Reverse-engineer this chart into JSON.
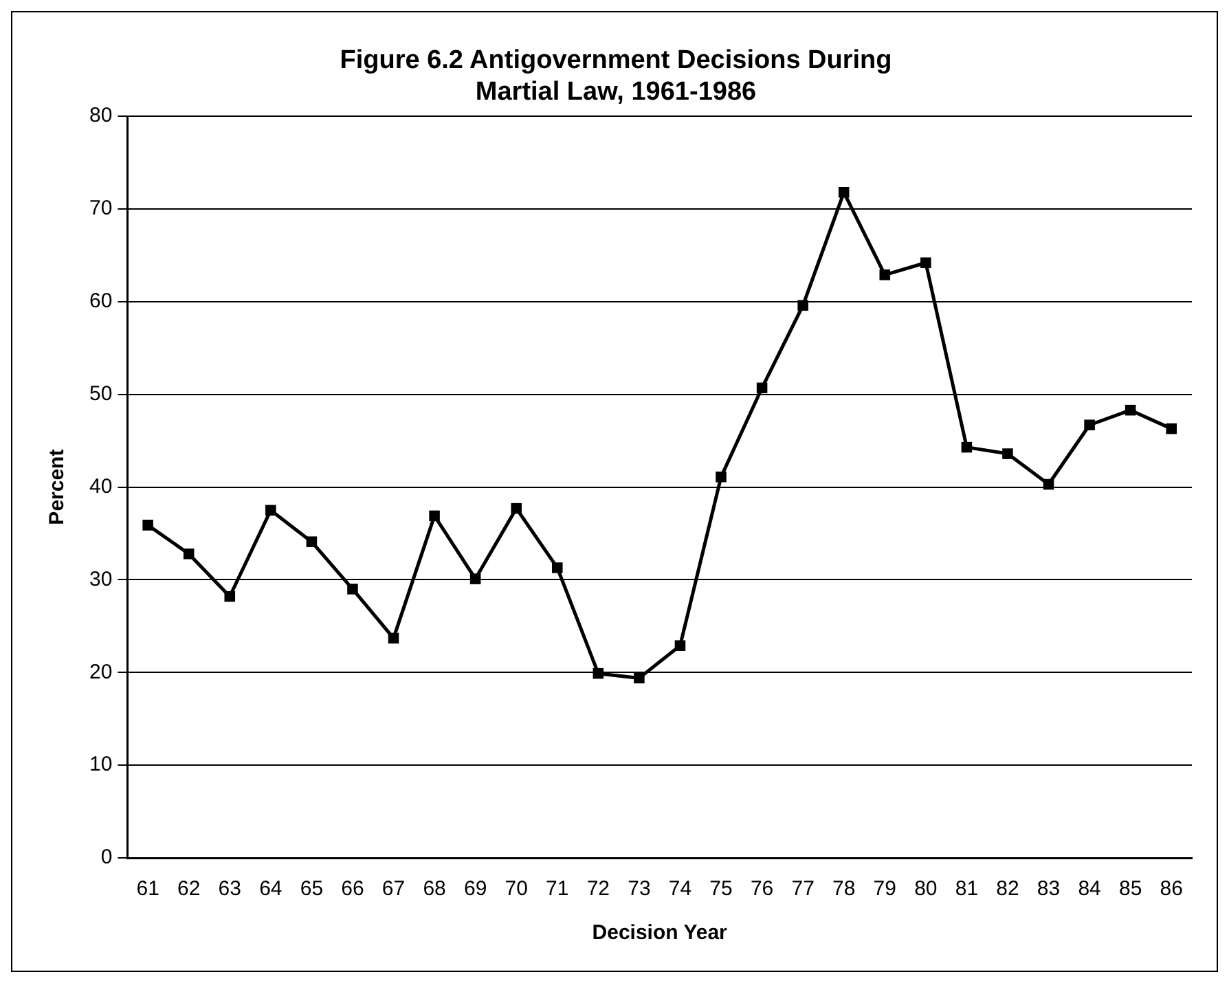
{
  "chart_data": {
    "type": "line",
    "title": "Figure 6.2 Antigovernment Decisions During Martial Law, 1961-1986",
    "xlabel": "Decision Year",
    "ylabel": "Percent",
    "categories": [
      "61",
      "62",
      "63",
      "64",
      "65",
      "66",
      "67",
      "68",
      "69",
      "70",
      "71",
      "72",
      "73",
      "74",
      "75",
      "76",
      "77",
      "78",
      "79",
      "80",
      "81",
      "82",
      "83",
      "84",
      "85",
      "86"
    ],
    "series": [
      {
        "color": "#000000",
        "values": [
          35.9,
          32.8,
          28.2,
          37.5,
          34.1,
          29.0,
          23.7,
          36.9,
          30.1,
          37.7,
          31.3,
          19.9,
          19.4,
          22.9,
          41.1,
          50.7,
          59.6,
          71.8,
          62.9,
          64.2,
          44.3,
          43.6,
          40.3,
          46.7,
          48.3,
          46.3
        ]
      }
    ],
    "ylim": [
      0,
      80
    ],
    "yticks": [
      0,
      10,
      20,
      30,
      40,
      50,
      60,
      70,
      80
    ],
    "grid": "y",
    "legend": false,
    "marker": "square",
    "line_style": "solid"
  }
}
